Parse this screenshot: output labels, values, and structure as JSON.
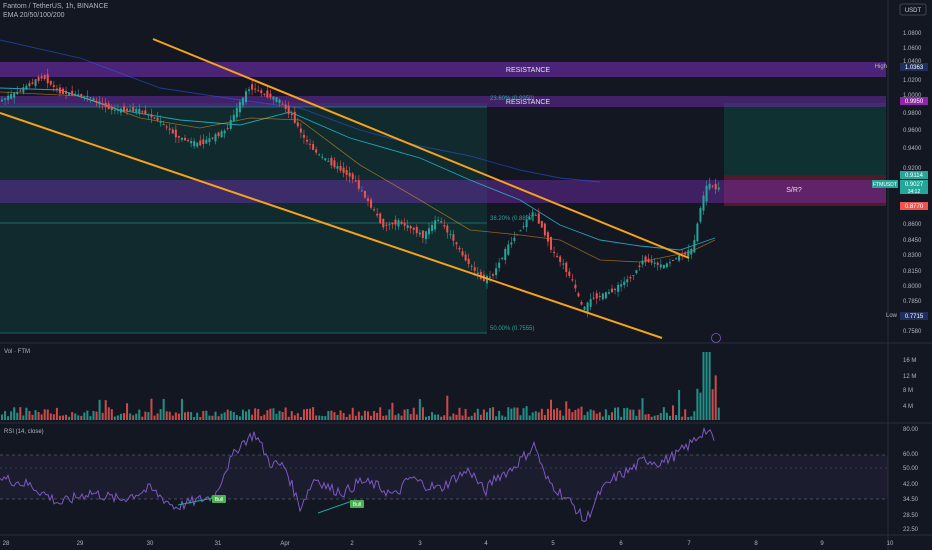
{
  "header": {
    "symbol_line": "Fantom / TetherUS, 1h, BINANCE",
    "ema_line": "EMA 20/50/100/200"
  },
  "currency": "USDT",
  "colors": {
    "background": "#131722",
    "bullish": "#26a69a",
    "bearish": "#ef5350",
    "channel": "#f7a21b",
    "zone": "#7b2fbe",
    "rsi_line": "#7e57c2",
    "target_zone": "#0f3b38",
    "stop_zone": "#5a1c2c"
  },
  "zones": {
    "resistance_1_label": "RESISTANCE",
    "resistance_2_label": "RESISTANCE",
    "sr_label": "S/R?"
  },
  "fib": {
    "level_23_label": "23.60% (0.9950)",
    "level_38_label": "38.20% (0.8830)",
    "level_50_label": "50.00% (0.7555)"
  },
  "price_axis": {
    "ticks": [
      "1.0800",
      "1.0600",
      "1.0400",
      "1.0200",
      "1.0000",
      "0.9800",
      "0.9600",
      "0.9400",
      "0.9200",
      "0.8600",
      "0.8450",
      "0.8300",
      "0.8150",
      "0.8000",
      "0.7850",
      "0.7580"
    ],
    "high_label": "High",
    "high_value": "1.0363",
    "resist_value": "0.9950",
    "top_value": "0.9114",
    "symbol_tag": "FTMUSDT",
    "last_value": "0.9027",
    "countdown": "34:12",
    "support_value": "0.8770",
    "low_label": "Low",
    "low_value": "0.7715"
  },
  "time_axis": [
    "28",
    "29",
    "30",
    "31",
    "Apr",
    "2",
    "3",
    "4",
    "5",
    "6",
    "7",
    "8",
    "9",
    "10"
  ],
  "volume": {
    "title": "Vol · FTM",
    "ticks": [
      "16 M",
      "12 M",
      "8 M",
      "4 M"
    ]
  },
  "rsi": {
    "title": "RSI (14, close)",
    "ticks": [
      "80.00",
      "60.00",
      "50.00",
      "42.00",
      "34.50",
      "28.50",
      "22.50"
    ],
    "bull_label_1": "Bull",
    "bull_label_2": "Bull"
  },
  "chart_data": {
    "type": "candlestick",
    "title": "Fantom / TetherUS, 1h, BINANCE",
    "x_range": [
      "28",
      "10"
    ],
    "y_range": [
      0.758,
      1.09
    ],
    "price_path": [
      [
        0,
        0.99
      ],
      [
        20,
        1.0
      ],
      [
        45,
        1.015
      ],
      [
        60,
        1.0
      ],
      [
        90,
        0.995
      ],
      [
        115,
        0.982
      ],
      [
        140,
        0.982
      ],
      [
        160,
        0.972
      ],
      [
        180,
        0.955
      ],
      [
        200,
        0.948
      ],
      [
        215,
        0.955
      ],
      [
        228,
        0.962
      ],
      [
        240,
        0.985
      ],
      [
        252,
        1.005
      ],
      [
        265,
        0.998
      ],
      [
        280,
        0.992
      ],
      [
        295,
        0.975
      ],
      [
        305,
        0.955
      ],
      [
        320,
        0.938
      ],
      [
        340,
        0.925
      ],
      [
        355,
        0.915
      ],
      [
        370,
        0.892
      ],
      [
        385,
        0.868
      ],
      [
        400,
        0.872
      ],
      [
        415,
        0.865
      ],
      [
        425,
        0.858
      ],
      [
        440,
        0.875
      ],
      [
        455,
        0.855
      ],
      [
        465,
        0.838
      ],
      [
        475,
        0.826
      ],
      [
        485,
        0.815
      ],
      [
        495,
        0.82
      ],
      [
        505,
        0.84
      ],
      [
        515,
        0.855
      ],
      [
        525,
        0.868
      ],
      [
        535,
        0.882
      ],
      [
        545,
        0.865
      ],
      [
        555,
        0.842
      ],
      [
        565,
        0.83
      ],
      [
        575,
        0.812
      ],
      [
        585,
        0.785
      ],
      [
        595,
        0.798
      ],
      [
        605,
        0.8
      ],
      [
        615,
        0.805
      ],
      [
        625,
        0.812
      ],
      [
        635,
        0.82
      ],
      [
        645,
        0.835
      ],
      [
        655,
        0.832
      ],
      [
        665,
        0.828
      ],
      [
        675,
        0.835
      ],
      [
        685,
        0.84
      ],
      [
        695,
        0.845
      ],
      [
        702,
        0.885
      ],
      [
        710,
        0.91
      ],
      [
        718,
        0.905
      ]
    ],
    "volume_spike_millions": 16.5,
    "rsi_path": [
      [
        0,
        52
      ],
      [
        30,
        48
      ],
      [
        60,
        38
      ],
      [
        90,
        44
      ],
      [
        120,
        40
      ],
      [
        150,
        46
      ],
      [
        175,
        36
      ],
      [
        200,
        40
      ],
      [
        215,
        42
      ],
      [
        225,
        56
      ],
      [
        240,
        70
      ],
      [
        255,
        76
      ],
      [
        270,
        60
      ],
      [
        285,
        58
      ],
      [
        300,
        36
      ],
      [
        315,
        52
      ],
      [
        330,
        46
      ],
      [
        345,
        44
      ],
      [
        360,
        50
      ],
      [
        375,
        48
      ],
      [
        395,
        42
      ],
      [
        410,
        52
      ],
      [
        425,
        48
      ],
      [
        440,
        46
      ],
      [
        455,
        52
      ],
      [
        470,
        56
      ],
      [
        485,
        44
      ],
      [
        495,
        52
      ],
      [
        510,
        56
      ],
      [
        525,
        64
      ],
      [
        535,
        70
      ],
      [
        545,
        52
      ],
      [
        560,
        44
      ],
      [
        575,
        36
      ],
      [
        585,
        28
      ],
      [
        600,
        44
      ],
      [
        615,
        52
      ],
      [
        630,
        56
      ],
      [
        645,
        62
      ],
      [
        660,
        60
      ],
      [
        675,
        64
      ],
      [
        690,
        70
      ],
      [
        705,
        78
      ],
      [
        715,
        72
      ]
    ]
  }
}
